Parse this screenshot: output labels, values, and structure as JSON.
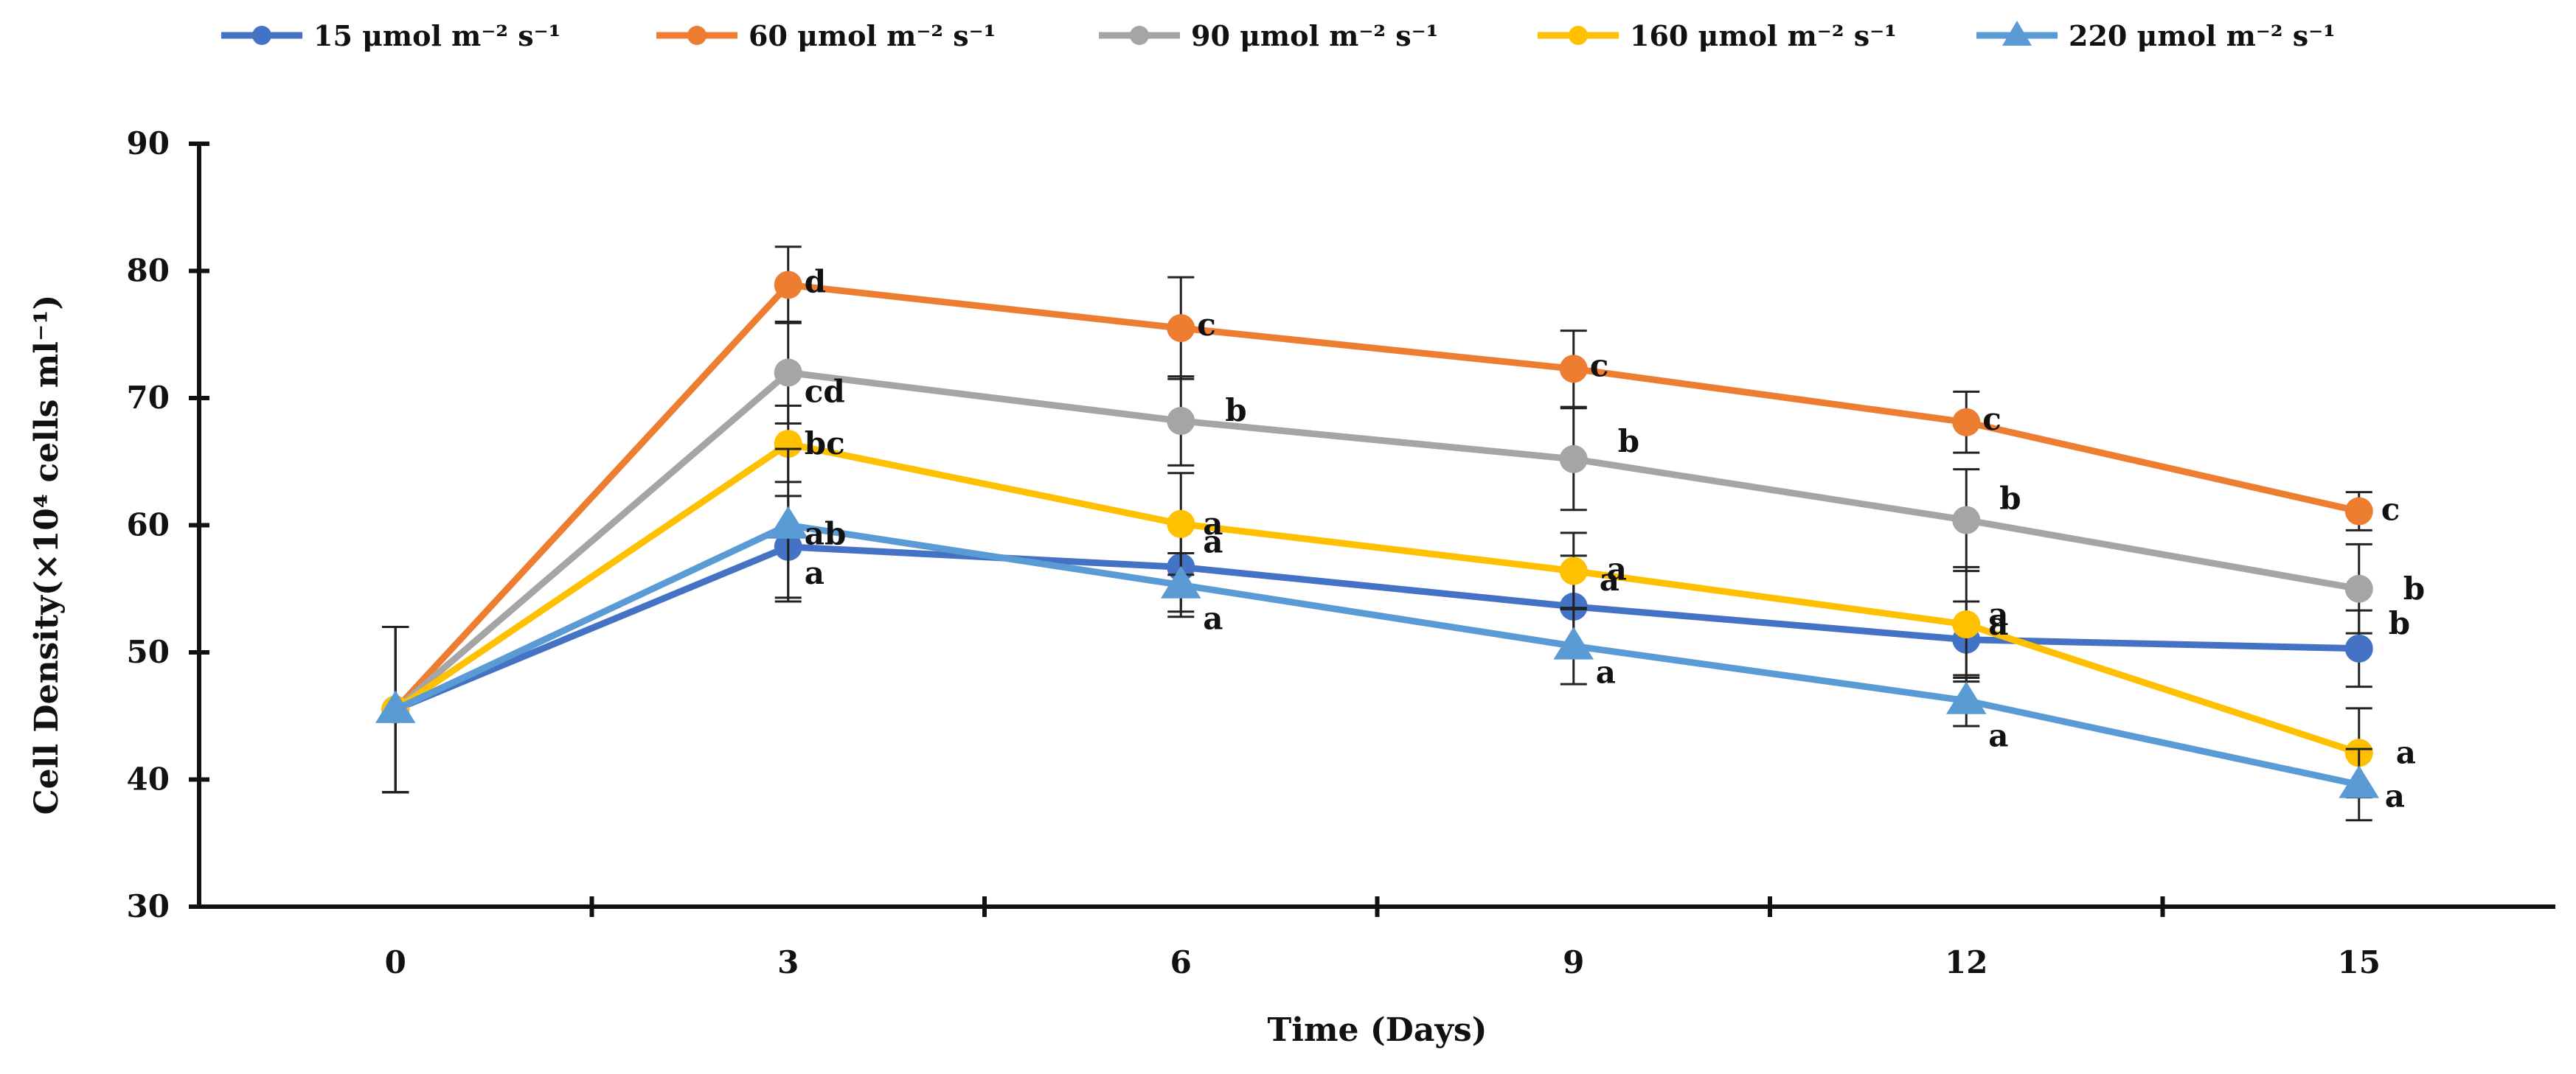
{
  "chart_data": {
    "type": "line",
    "xlabel": "Time (Days)",
    "ylabel": "Cell Density(×10⁴ cells ml⁻¹)",
    "x": [
      0,
      3,
      6,
      9,
      12,
      15
    ],
    "x_ticks": [
      "0",
      "3",
      "6",
      "9",
      "12",
      "15"
    ],
    "ylim": [
      30,
      90
    ],
    "y_ticks": [
      "30",
      "40",
      "50",
      "60",
      "70",
      "80",
      "90"
    ],
    "legend_position": "top",
    "series": [
      {
        "name": "15 μmol m⁻² s⁻¹",
        "color": "#4472C4",
        "marker": "circle",
        "values": [
          45.5,
          58.3,
          56.7,
          53.6,
          51.0,
          50.3
        ],
        "errors": [
          6.5,
          4.0,
          3.5,
          4.0,
          3.0,
          3.0
        ],
        "labels": [
          "",
          "a",
          "a",
          "a",
          "a",
          "b"
        ]
      },
      {
        "name": "60 μmol m⁻² s⁻¹",
        "color": "#ED7D31",
        "marker": "circle",
        "values": [
          45.5,
          78.9,
          75.5,
          72.3,
          68.1,
          61.1
        ],
        "errors": [
          6.5,
          3.0,
          4.0,
          3.0,
          2.4,
          1.5
        ],
        "labels": [
          "",
          "d",
          "c",
          "c",
          "c",
          "c"
        ]
      },
      {
        "name": "90 μmol m⁻² s⁻¹",
        "color": "#A5A5A5",
        "marker": "circle",
        "values": [
          45.5,
          72.0,
          68.2,
          65.2,
          60.4,
          55.0
        ],
        "errors": [
          6.5,
          4.0,
          3.5,
          4.0,
          4.0,
          3.5
        ],
        "labels": [
          "",
          "cd",
          "b",
          "b",
          "b",
          "b"
        ]
      },
      {
        "name": "160 μmol m⁻² s⁻¹",
        "color": "#FFC000",
        "marker": "circle",
        "values": [
          45.5,
          66.4,
          60.1,
          56.4,
          52.2,
          42.1
        ],
        "errors": [
          6.5,
          3.0,
          4.0,
          3.0,
          4.5,
          3.5
        ],
        "labels": [
          "",
          "bc",
          "a",
          "a",
          "a",
          "a"
        ]
      },
      {
        "name": "220 μmol m⁻² s⁻¹",
        "color": "#5B9BD5",
        "marker": "triangle",
        "values": [
          45.5,
          60.0,
          55.3,
          50.5,
          46.2,
          39.6
        ],
        "errors": [
          6.5,
          6.0,
          2.5,
          3.0,
          2.0,
          2.8
        ],
        "labels": [
          "",
          "ab",
          "a",
          "a",
          "a",
          "a"
        ]
      }
    ]
  }
}
